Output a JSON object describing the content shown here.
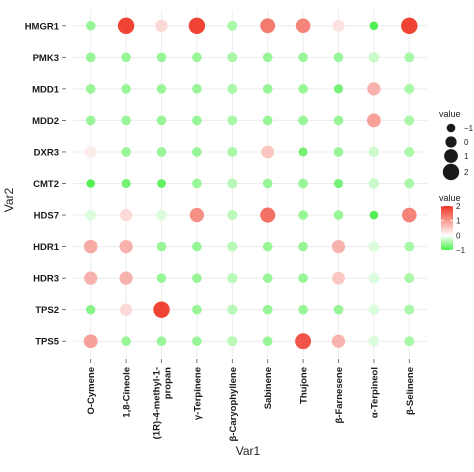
{
  "chart_data": {
    "type": "scatter",
    "subtype": "dot-matrix",
    "xlabel": "Var1",
    "ylabel": "Var2",
    "x_categories": [
      "O-Cymene",
      "1,8-Cineole",
      "(1R)-4-methyl-1-propan",
      "γ-Terpinene",
      "β-Caryophyllene",
      "Sabinene",
      "Thujone",
      "β-Farnesene",
      "α-Terpineol",
      "β-Selinene"
    ],
    "y_categories": [
      "HMGR1",
      "PMK3",
      "MDD1",
      "MDD2",
      "DXR3",
      "CMT2",
      "HDS7",
      "HDR1",
      "HDR3",
      "TPS2",
      "TPS5"
    ],
    "values": [
      [
        -0.6,
        2.0,
        0.4,
        2.2,
        -0.5,
        1.4,
        1.3,
        0.3,
        -1.0,
        2.0
      ],
      [
        -0.6,
        -0.6,
        -0.6,
        -0.6,
        -0.5,
        -0.6,
        -0.6,
        -0.6,
        -0.3,
        -0.5
      ],
      [
        -0.6,
        -0.6,
        -0.6,
        -0.6,
        -0.5,
        -0.6,
        -0.6,
        -0.8,
        0.8,
        -0.5
      ],
      [
        -0.6,
        -0.6,
        -0.6,
        -0.6,
        -0.5,
        -0.6,
        -0.6,
        -0.6,
        1.0,
        -0.5
      ],
      [
        0.2,
        -0.6,
        -0.6,
        -0.6,
        -0.5,
        0.6,
        -0.8,
        -0.6,
        -0.3,
        -0.5
      ],
      [
        -1.0,
        -0.8,
        -0.9,
        -0.6,
        -0.4,
        -0.6,
        -0.6,
        -0.8,
        -0.3,
        -0.5
      ],
      [
        -0.2,
        0.4,
        -0.2,
        1.2,
        -0.4,
        1.5,
        -0.6,
        -0.6,
        -1.0,
        1.3
      ],
      [
        0.9,
        0.8,
        -0.6,
        -0.6,
        -0.4,
        -0.6,
        -0.6,
        0.8,
        -0.2,
        -0.5
      ],
      [
        0.8,
        0.8,
        -0.6,
        -0.6,
        -0.4,
        -0.6,
        -0.6,
        0.6,
        -0.2,
        -0.5
      ],
      [
        -0.7,
        0.4,
        2.3,
        -0.6,
        -0.4,
        -0.6,
        -0.6,
        -0.6,
        -0.2,
        -0.5
      ],
      [
        1.0,
        -0.6,
        -0.6,
        -0.6,
        -0.4,
        -0.6,
        1.8,
        0.8,
        -0.2,
        -0.5
      ]
    ],
    "color_scale": {
      "low": "#44ee44",
      "mid": "#ffffff",
      "high": "#ee3322",
      "domain": [
        -1,
        2
      ]
    },
    "grid": true,
    "legend_placement": "right",
    "size_legend": {
      "title": "value",
      "labels": [
        "−1",
        "0",
        "1",
        "2"
      ],
      "values": [
        -1,
        0,
        1,
        2
      ]
    },
    "color_legend": {
      "title": "value",
      "labels": [
        "2",
        "1",
        "0",
        "−1"
      ],
      "values": [
        2,
        1,
        0,
        -1
      ]
    }
  }
}
